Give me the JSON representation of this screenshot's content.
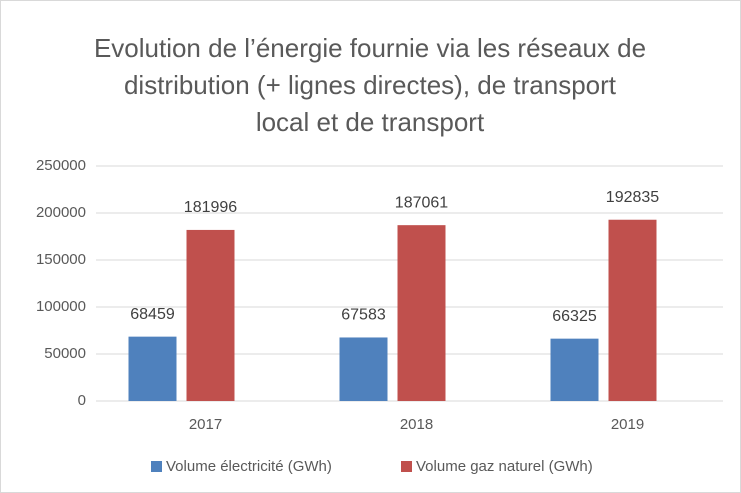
{
  "chart_data": {
    "type": "bar",
    "title": [
      "Evolution de l’énergie fournie via les réseaux de",
      "distribution (+ lignes directes), de transport",
      "local et de transport"
    ],
    "categories": [
      "2017",
      "2018",
      "2019"
    ],
    "series": [
      {
        "name": "Volume électricité (GWh)",
        "color": "#4f81bd",
        "values": [
          68459,
          67583,
          66325
        ]
      },
      {
        "name": "Volume gaz naturel (GWh)",
        "color": "#c0504d",
        "values": [
          181996,
          187061,
          192835
        ]
      }
    ],
    "ylim": [
      0,
      250000
    ],
    "yticks": [
      0,
      50000,
      100000,
      150000,
      200000,
      250000
    ],
    "grid": true,
    "legend": "bottom"
  }
}
